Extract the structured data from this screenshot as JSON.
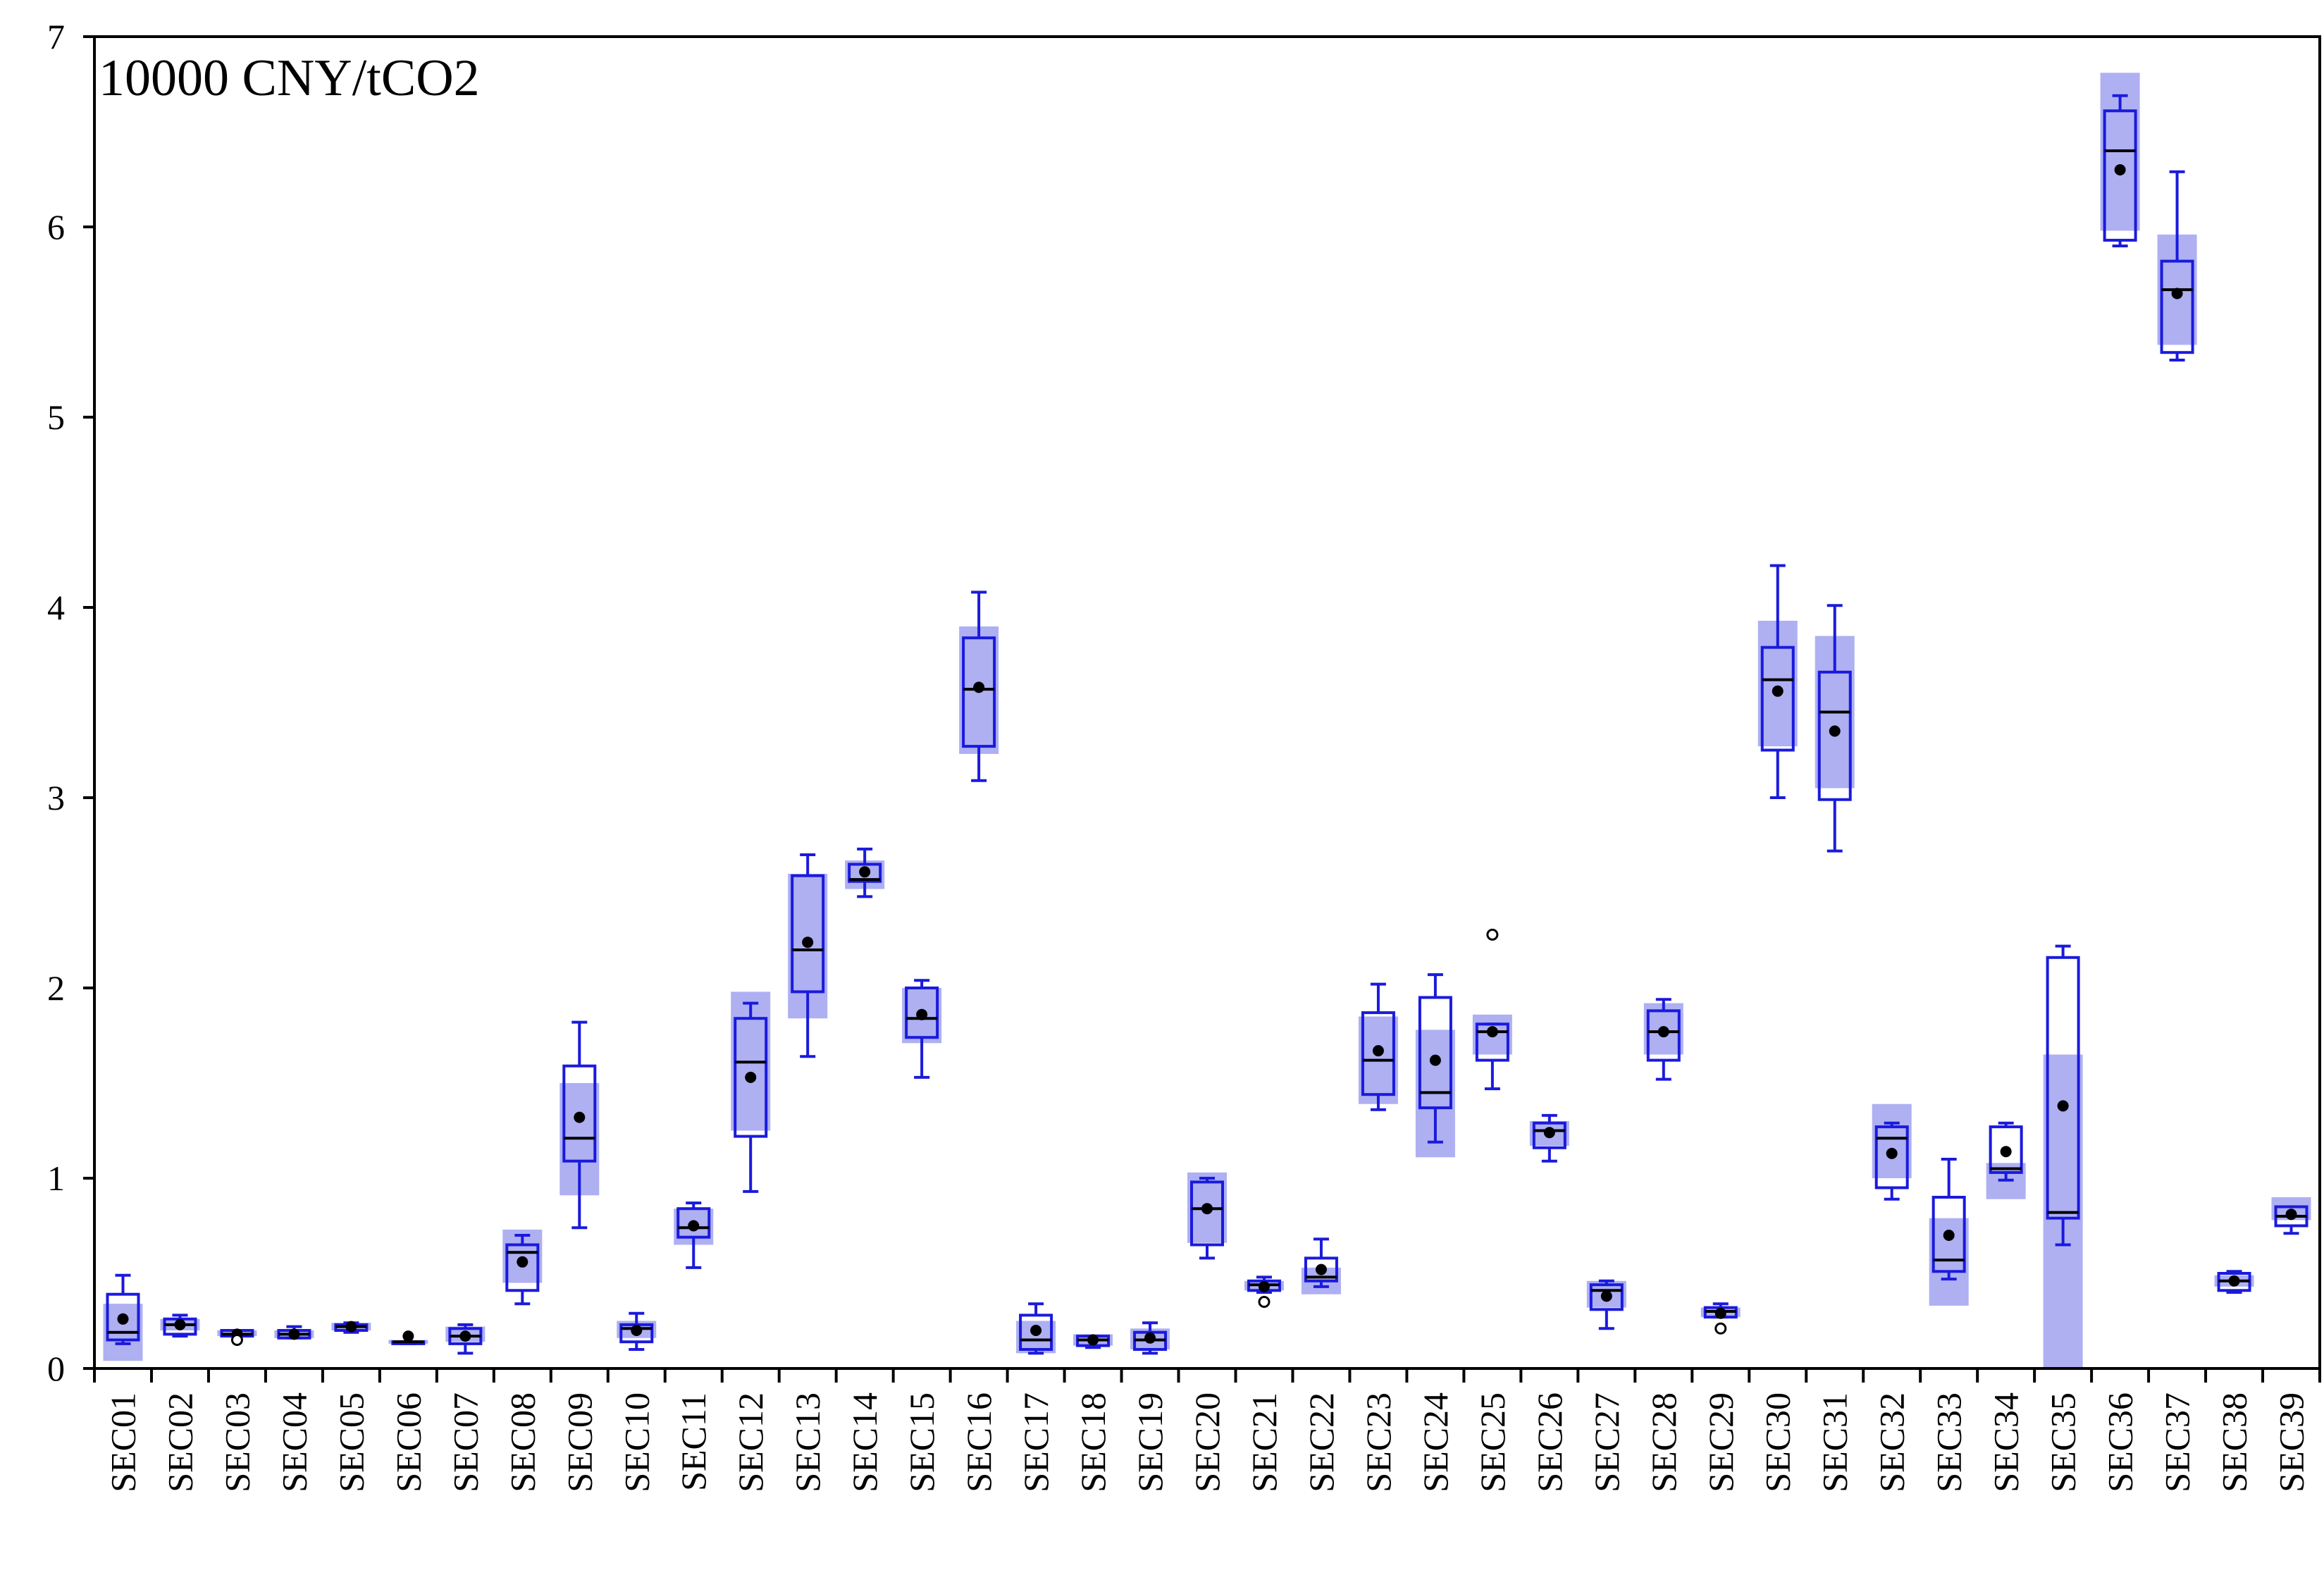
{
  "chart_data": {
    "type": "box",
    "unit_label": "10000 CNY/tCO2",
    "ylim": [
      0,
      7
    ],
    "yticks": [
      0,
      1,
      2,
      3,
      4,
      5,
      6,
      7
    ],
    "grid": false,
    "colors": {
      "box": "#1a1adc",
      "band": "#aeb0f2",
      "median": "#000000",
      "mean": "#000000",
      "axis": "#000000"
    },
    "categories": [
      "SEC01",
      "SEC02",
      "SEC03",
      "SEC04",
      "SEC05",
      "SEC06",
      "SEC07",
      "SEC08",
      "SEC09",
      "SEC10",
      "SEC11",
      "SEC12",
      "SEC13",
      "SEC14",
      "SEC15",
      "SEC16",
      "SEC17",
      "SEC18",
      "SEC19",
      "SEC20",
      "SEC21",
      "SEC22",
      "SEC23",
      "SEC24",
      "SEC25",
      "SEC26",
      "SEC27",
      "SEC28",
      "SEC29",
      "SEC30",
      "SEC31",
      "SEC32",
      "SEC33",
      "SEC34",
      "SEC35",
      "SEC36",
      "SEC37",
      "SEC38",
      "SEC39"
    ],
    "boxes": [
      {
        "min": 0.13,
        "q1": 0.15,
        "median": 0.19,
        "q3": 0.39,
        "max": 0.49,
        "mean": 0.26,
        "band": [
          0.04,
          0.34
        ],
        "outliers": []
      },
      {
        "min": 0.17,
        "q1": 0.18,
        "median": 0.23,
        "q3": 0.26,
        "max": 0.28,
        "mean": 0.23,
        "band": [
          0.2,
          0.26
        ],
        "outliers": []
      },
      {
        "min": 0.17,
        "q1": 0.17,
        "median": 0.18,
        "q3": 0.2,
        "max": 0.2,
        "mean": 0.18,
        "band": [
          0.17,
          0.2
        ],
        "outliers": [
          0.15
        ]
      },
      {
        "min": 0.16,
        "q1": 0.16,
        "median": 0.18,
        "q3": 0.2,
        "max": 0.22,
        "mean": 0.18,
        "band": [
          0.16,
          0.2
        ],
        "outliers": []
      },
      {
        "min": 0.19,
        "q1": 0.2,
        "median": 0.22,
        "q3": 0.23,
        "max": 0.24,
        "mean": 0.22,
        "band": [
          0.2,
          0.24
        ],
        "outliers": []
      },
      {
        "min": 0.13,
        "q1": 0.13,
        "median": 0.14,
        "q3": 0.14,
        "max": 0.14,
        "mean": 0.17,
        "band": [
          0.13,
          0.15
        ],
        "outliers": []
      },
      {
        "min": 0.08,
        "q1": 0.13,
        "median": 0.17,
        "q3": 0.21,
        "max": 0.23,
        "mean": 0.17,
        "band": [
          0.14,
          0.22
        ],
        "outliers": []
      },
      {
        "min": 0.34,
        "q1": 0.41,
        "median": 0.61,
        "q3": 0.65,
        "max": 0.7,
        "mean": 0.56,
        "band": [
          0.45,
          0.73
        ],
        "outliers": []
      },
      {
        "min": 0.74,
        "q1": 1.09,
        "median": 1.21,
        "q3": 1.59,
        "max": 1.82,
        "mean": 1.32,
        "band": [
          0.91,
          1.5
        ],
        "outliers": []
      },
      {
        "min": 0.1,
        "q1": 0.14,
        "median": 0.21,
        "q3": 0.23,
        "max": 0.29,
        "mean": 0.2,
        "band": [
          0.16,
          0.25
        ],
        "outliers": []
      },
      {
        "min": 0.53,
        "q1": 0.69,
        "median": 0.74,
        "q3": 0.84,
        "max": 0.87,
        "mean": 0.75,
        "band": [
          0.65,
          0.84
        ],
        "outliers": []
      },
      {
        "min": 0.93,
        "q1": 1.22,
        "median": 1.61,
        "q3": 1.84,
        "max": 1.92,
        "mean": 1.53,
        "band": [
          1.25,
          1.98
        ],
        "outliers": []
      },
      {
        "min": 1.64,
        "q1": 1.98,
        "median": 2.2,
        "q3": 2.59,
        "max": 2.7,
        "mean": 2.24,
        "band": [
          1.84,
          2.6
        ],
        "outliers": []
      },
      {
        "min": 2.48,
        "q1": 2.56,
        "median": 2.57,
        "q3": 2.65,
        "max": 2.73,
        "mean": 2.61,
        "band": [
          2.52,
          2.67
        ],
        "outliers": []
      },
      {
        "min": 1.53,
        "q1": 1.74,
        "median": 1.84,
        "q3": 2.0,
        "max": 2.04,
        "mean": 1.86,
        "band": [
          1.71,
          2.0
        ],
        "outliers": []
      },
      {
        "min": 3.09,
        "q1": 3.27,
        "median": 3.57,
        "q3": 3.84,
        "max": 4.08,
        "mean": 3.58,
        "band": [
          3.23,
          3.9
        ],
        "outliers": []
      },
      {
        "min": 0.08,
        "q1": 0.1,
        "median": 0.15,
        "q3": 0.28,
        "max": 0.34,
        "mean": 0.2,
        "band": [
          0.08,
          0.25
        ],
        "outliers": []
      },
      {
        "min": 0.11,
        "q1": 0.12,
        "median": 0.15,
        "q3": 0.17,
        "max": 0.17,
        "mean": 0.15,
        "band": [
          0.12,
          0.18
        ],
        "outliers": []
      },
      {
        "min": 0.08,
        "q1": 0.1,
        "median": 0.15,
        "q3": 0.19,
        "max": 0.24,
        "mean": 0.16,
        "band": [
          0.1,
          0.21
        ],
        "outliers": []
      },
      {
        "min": 0.58,
        "q1": 0.65,
        "median": 0.84,
        "q3": 0.98,
        "max": 1.0,
        "mean": 0.84,
        "band": [
          0.66,
          1.03
        ],
        "outliers": []
      },
      {
        "min": 0.4,
        "q1": 0.41,
        "median": 0.44,
        "q3": 0.46,
        "max": 0.48,
        "mean": 0.43,
        "band": [
          0.41,
          0.46
        ],
        "outliers": [
          0.35
        ]
      },
      {
        "min": 0.43,
        "q1": 0.46,
        "median": 0.48,
        "q3": 0.58,
        "max": 0.68,
        "mean": 0.52,
        "band": [
          0.39,
          0.53
        ],
        "outliers": []
      },
      {
        "min": 1.36,
        "q1": 1.44,
        "median": 1.62,
        "q3": 1.87,
        "max": 2.02,
        "mean": 1.67,
        "band": [
          1.39,
          1.85
        ],
        "outliers": []
      },
      {
        "min": 1.19,
        "q1": 1.37,
        "median": 1.45,
        "q3": 1.95,
        "max": 2.07,
        "mean": 1.62,
        "band": [
          1.11,
          1.78
        ],
        "outliers": []
      },
      {
        "min": 1.47,
        "q1": 1.62,
        "median": 1.77,
        "q3": 1.81,
        "max": 1.81,
        "mean": 1.77,
        "band": [
          1.65,
          1.86
        ],
        "outliers": [
          2.28
        ]
      },
      {
        "min": 1.09,
        "q1": 1.16,
        "median": 1.25,
        "q3": 1.29,
        "max": 1.33,
        "mean": 1.24,
        "band": [
          1.17,
          1.3
        ],
        "outliers": []
      },
      {
        "min": 0.21,
        "q1": 0.31,
        "median": 0.41,
        "q3": 0.44,
        "max": 0.46,
        "mean": 0.38,
        "band": [
          0.32,
          0.46
        ],
        "outliers": []
      },
      {
        "min": 1.52,
        "q1": 1.62,
        "median": 1.77,
        "q3": 1.88,
        "max": 1.94,
        "mean": 1.77,
        "band": [
          1.65,
          1.92
        ],
        "outliers": []
      },
      {
        "min": 0.27,
        "q1": 0.27,
        "median": 0.3,
        "q3": 0.32,
        "max": 0.34,
        "mean": 0.29,
        "band": [
          0.27,
          0.32
        ],
        "outliers": [
          0.21
        ]
      },
      {
        "min": 3.0,
        "q1": 3.25,
        "median": 3.62,
        "q3": 3.79,
        "max": 4.22,
        "mean": 3.56,
        "band": [
          3.27,
          3.93
        ],
        "outliers": []
      },
      {
        "min": 2.72,
        "q1": 2.99,
        "median": 3.45,
        "q3": 3.66,
        "max": 4.01,
        "mean": 3.35,
        "band": [
          3.05,
          3.85
        ],
        "outliers": []
      },
      {
        "min": 0.89,
        "q1": 0.95,
        "median": 1.21,
        "q3": 1.27,
        "max": 1.29,
        "mean": 1.13,
        "band": [
          1.0,
          1.39
        ],
        "outliers": []
      },
      {
        "min": 0.47,
        "q1": 0.51,
        "median": 0.57,
        "q3": 0.9,
        "max": 1.1,
        "mean": 0.7,
        "band": [
          0.33,
          0.79
        ],
        "outliers": []
      },
      {
        "min": 0.99,
        "q1": 1.03,
        "median": 1.05,
        "q3": 1.27,
        "max": 1.29,
        "mean": 1.14,
        "band": [
          0.89,
          1.08
        ],
        "outliers": []
      },
      {
        "min": 0.65,
        "q1": 0.79,
        "median": 0.82,
        "q3": 2.16,
        "max": 2.22,
        "mean": 1.38,
        "band": [
          0.0,
          1.65
        ],
        "outliers": []
      },
      {
        "min": 5.9,
        "q1": 5.93,
        "median": 6.4,
        "q3": 6.61,
        "max": 6.69,
        "mean": 6.3,
        "band": [
          5.98,
          6.81
        ],
        "outliers": []
      },
      {
        "min": 5.3,
        "q1": 5.34,
        "median": 5.67,
        "q3": 5.82,
        "max": 6.29,
        "mean": 5.65,
        "band": [
          5.38,
          5.96
        ],
        "outliers": []
      },
      {
        "min": 0.4,
        "q1": 0.41,
        "median": 0.46,
        "q3": 0.5,
        "max": 0.51,
        "mean": 0.46,
        "band": [
          0.43,
          0.49
        ],
        "outliers": []
      },
      {
        "min": 0.71,
        "q1": 0.75,
        "median": 0.8,
        "q3": 0.85,
        "max": 0.85,
        "mean": 0.81,
        "band": [
          0.78,
          0.9
        ],
        "outliers": []
      }
    ]
  }
}
